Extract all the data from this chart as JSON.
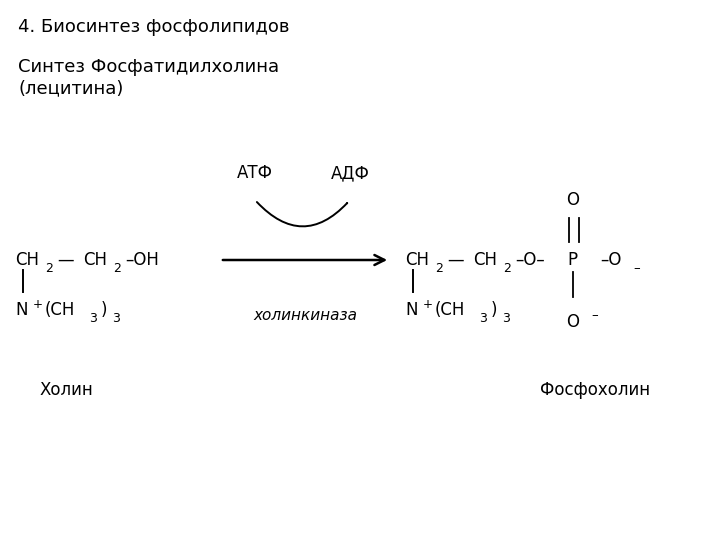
{
  "title1": "4. Биосинтез фосфолипидов",
  "title2": "Синтез Фосфатидилхолина\n(лецитина)",
  "label_choline": "Холин",
  "label_phosphocholine": "Фосфохолин",
  "label_atf": "АТФ",
  "label_adf": "АДФ",
  "label_enzyme": "холинкиназа",
  "bg_color": "#ffffff",
  "text_color": "#000000",
  "title1_fontsize": 13,
  "title2_fontsize": 13,
  "mol_fontsize": 12,
  "label_fontsize": 12,
  "enzyme_fontsize": 11
}
